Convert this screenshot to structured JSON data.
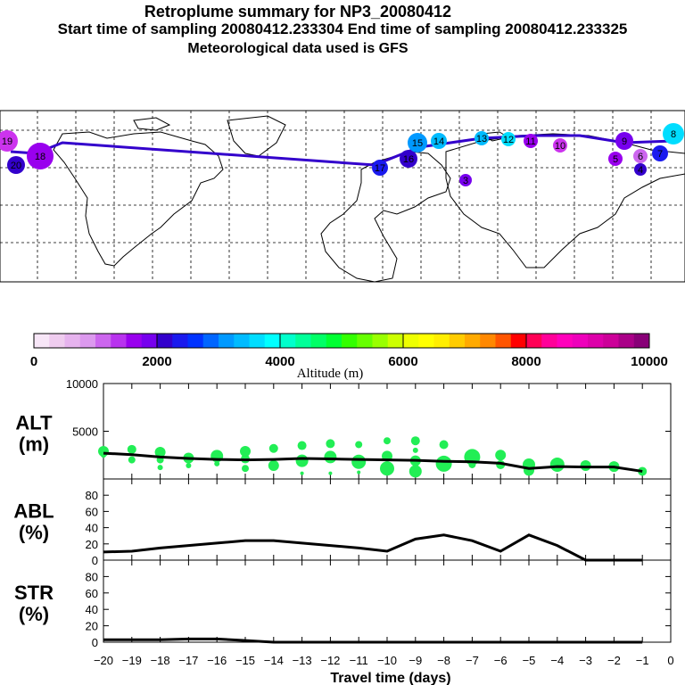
{
  "header": {
    "title": "Retroplume summary for NP3_20080412",
    "sampling": "Start time of sampling 20080412.233304     End time of sampling 20080412.233325",
    "met": "Meteorological data used is GFS"
  },
  "colorbar": {
    "label": "Altitude (m)",
    "ticks": [
      "0",
      "2000",
      "4000",
      "6000",
      "8000",
      "10000"
    ],
    "colors": [
      "#f7e6f7",
      "#efccef",
      "#e6b3ee",
      "#dc99ee",
      "#cc66ee",
      "#b833ee",
      "#9900ee",
      "#7700ee",
      "#3300cc",
      "#1a1aee",
      "#0033ff",
      "#0066ff",
      "#0099ff",
      "#00bbff",
      "#00ddff",
      "#00ffff",
      "#00ffcc",
      "#00ff99",
      "#00ff66",
      "#00ff33",
      "#33ff00",
      "#66ff00",
      "#99ff00",
      "#ccff00",
      "#eeff00",
      "#ffff00",
      "#ffee00",
      "#ffcc00",
      "#ffaa00",
      "#ff8800",
      "#ff5500",
      "#ff0000",
      "#ff0055",
      "#ff0099",
      "#ff00bb",
      "#ee00bb",
      "#dd00aa",
      "#cc0099",
      "#aa0088",
      "#880077"
    ]
  },
  "map": {
    "markers": [
      {
        "label": "19",
        "color": "#cc33ee"
      },
      {
        "label": "18",
        "color": "#9900ee"
      },
      {
        "label": "20",
        "color": "#3300cc"
      },
      {
        "label": "17",
        "color": "#1a1aee"
      },
      {
        "label": "16",
        "color": "#3300cc"
      },
      {
        "label": "15",
        "color": "#0099ff"
      },
      {
        "label": "14",
        "color": "#00bbff"
      },
      {
        "label": "13",
        "color": "#00bbff"
      },
      {
        "label": "12",
        "color": "#00ddff"
      },
      {
        "label": "11",
        "color": "#9900ee"
      },
      {
        "label": "10",
        "color": "#cc33ee"
      },
      {
        "label": "9",
        "color": "#7700ee"
      },
      {
        "label": "8",
        "color": "#00ddff"
      },
      {
        "label": "7",
        "color": "#1a1aee"
      },
      {
        "label": "6",
        "color": "#cc66ee"
      },
      {
        "label": "5",
        "color": "#9900ee"
      },
      {
        "label": "4",
        "color": "#3300cc"
      },
      {
        "label": "3",
        "color": "#7700ee"
      }
    ]
  },
  "chart_data": [
    {
      "type": "scatter",
      "ylabel": "ALT\n(m)",
      "label_line1": "ALT",
      "label_line2": "(m)",
      "yticks": [
        "10000",
        "5000"
      ],
      "ylim": [
        0,
        10000
      ],
      "xlim": [
        -20,
        0
      ],
      "series": [
        {
          "name": "median altitude",
          "kind": "line",
          "x": [
            -20,
            -19,
            -18,
            -17,
            -16,
            -15,
            -14,
            -13,
            -12,
            -11,
            -10,
            -9,
            -8,
            -7,
            -6,
            -5,
            -4,
            -3,
            -2,
            -1
          ],
          "y": [
            2700,
            2550,
            2300,
            2150,
            2050,
            2000,
            2050,
            2150,
            2100,
            2050,
            2000,
            1950,
            1850,
            1800,
            1650,
            1100,
            1300,
            1250,
            1250,
            800
          ]
        },
        {
          "name": "plume fractions",
          "kind": "dots",
          "points": [
            {
              "x": -20,
              "y": 2900,
              "r": 6
            },
            {
              "x": -20,
              "y": 2500,
              "r": 3
            },
            {
              "x": -19,
              "y": 3100,
              "r": 5
            },
            {
              "x": -19,
              "y": 2000,
              "r": 4
            },
            {
              "x": -18,
              "y": 2800,
              "r": 6
            },
            {
              "x": -18,
              "y": 2000,
              "r": 4
            },
            {
              "x": -18,
              "y": 1200,
              "r": 3
            },
            {
              "x": -17,
              "y": 2200,
              "r": 6
            },
            {
              "x": -17,
              "y": 1400,
              "r": 3
            },
            {
              "x": -16,
              "y": 2400,
              "r": 7
            },
            {
              "x": -16,
              "y": 1600,
              "r": 3
            },
            {
              "x": -15,
              "y": 2900,
              "r": 6
            },
            {
              "x": -15,
              "y": 2100,
              "r": 5
            },
            {
              "x": -15,
              "y": 1100,
              "r": 4
            },
            {
              "x": -14,
              "y": 3200,
              "r": 5
            },
            {
              "x": -14,
              "y": 1400,
              "r": 6
            },
            {
              "x": -13,
              "y": 3500,
              "r": 5
            },
            {
              "x": -13,
              "y": 1900,
              "r": 7
            },
            {
              "x": -13,
              "y": 600,
              "r": 2
            },
            {
              "x": -12,
              "y": 3700,
              "r": 5
            },
            {
              "x": -12,
              "y": 2300,
              "r": 7
            },
            {
              "x": -12,
              "y": 600,
              "r": 2
            },
            {
              "x": -11,
              "y": 3600,
              "r": 4
            },
            {
              "x": -11,
              "y": 1800,
              "r": 8
            },
            {
              "x": -11,
              "y": 700,
              "r": 2
            },
            {
              "x": -10,
              "y": 4000,
              "r": 4
            },
            {
              "x": -10,
              "y": 2400,
              "r": 6
            },
            {
              "x": -10,
              "y": 1100,
              "r": 8
            },
            {
              "x": -9,
              "y": 4000,
              "r": 5
            },
            {
              "x": -9,
              "y": 3000,
              "r": 3
            },
            {
              "x": -9,
              "y": 1900,
              "r": 6
            },
            {
              "x": -9,
              "y": 800,
              "r": 7
            },
            {
              "x": -8,
              "y": 3600,
              "r": 5
            },
            {
              "x": -8,
              "y": 1600,
              "r": 9
            },
            {
              "x": -7,
              "y": 2300,
              "r": 9
            },
            {
              "x": -7,
              "y": 1500,
              "r": 4
            },
            {
              "x": -6,
              "y": 2500,
              "r": 6
            },
            {
              "x": -6,
              "y": 1500,
              "r": 5
            },
            {
              "x": -5,
              "y": 1500,
              "r": 7
            },
            {
              "x": -5,
              "y": 900,
              "r": 6
            },
            {
              "x": -4,
              "y": 1500,
              "r": 8
            },
            {
              "x": -3,
              "y": 1400,
              "r": 6
            },
            {
              "x": -2,
              "y": 1300,
              "r": 6
            },
            {
              "x": -1,
              "y": 800,
              "r": 5
            }
          ]
        }
      ]
    },
    {
      "type": "line",
      "ylabel": "ABL\n(%)",
      "label_line1": "ABL",
      "label_line2": "(%)",
      "yticks": [
        "80",
        "60",
        "40",
        "20",
        "0"
      ],
      "ylim": [
        0,
        100
      ],
      "xlim": [
        -20,
        0
      ],
      "x": [
        -20,
        -19,
        -18,
        -17,
        -16,
        -15,
        -14,
        -13,
        -12,
        -11,
        -10,
        -9,
        -8,
        -7,
        -6,
        -5,
        -4,
        -3,
        -2,
        -1
      ],
      "values": [
        10,
        11,
        15,
        18,
        21,
        24,
        24,
        21,
        18,
        15,
        11,
        26,
        31,
        24,
        11,
        31,
        18,
        0,
        0,
        0
      ]
    },
    {
      "type": "line",
      "ylabel": "STR\n(%)",
      "label_line1": "STR",
      "label_line2": "(%)",
      "yticks": [
        "80",
        "60",
        "40",
        "20",
        "0"
      ],
      "ylim": [
        0,
        100
      ],
      "xlim": [
        -20,
        0
      ],
      "x": [
        -20,
        -19,
        -18,
        -17,
        -16,
        -15,
        -14,
        -13,
        -12,
        -11,
        -10,
        -9,
        -8,
        -7,
        -6,
        -5,
        -4,
        -3,
        -2,
        -1
      ],
      "values": [
        3,
        3,
        3,
        4,
        4,
        2,
        0,
        0,
        0,
        0,
        0,
        0,
        0,
        0,
        0,
        0,
        0,
        0,
        0,
        0
      ]
    }
  ],
  "xaxis": {
    "ticks": [
      "−20",
      "−19",
      "−18",
      "−17",
      "−16",
      "−15",
      "−14",
      "−13",
      "−12",
      "−11",
      "−10",
      "−9",
      "−8",
      "−7",
      "−6",
      "−5",
      "−4",
      "−3",
      "−2",
      "−1",
      "0"
    ],
    "label": "Travel time (days)"
  }
}
